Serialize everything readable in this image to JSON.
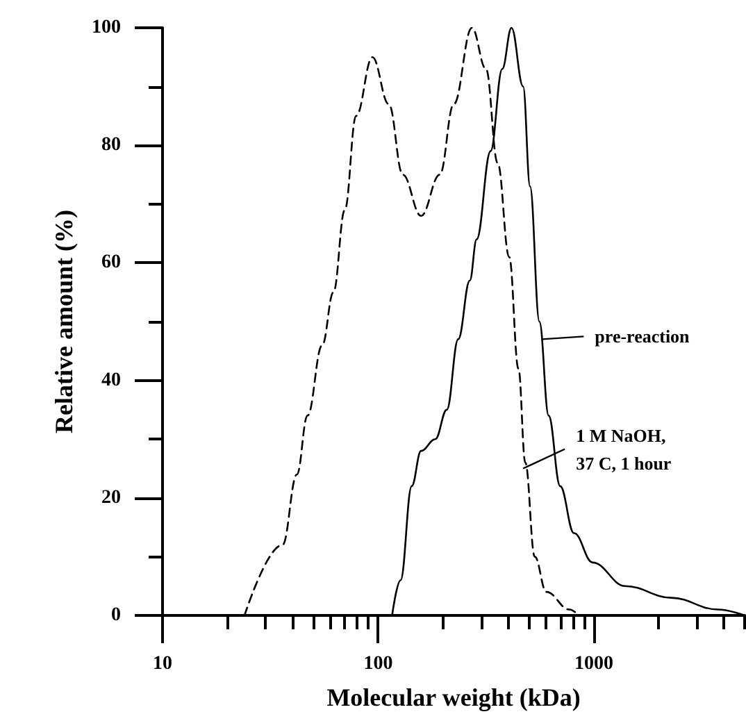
{
  "chart_data": {
    "type": "line",
    "xlabel": "Molecular weight (kDa)",
    "ylabel": "Relative amount (%)",
    "log": "x",
    "xlim": [
      10,
      5000
    ],
    "ylim": [
      0,
      100
    ],
    "xticks": [
      10,
      {
        "value": 20,
        "label": null
      },
      {
        "value": 30,
        "label": null
      },
      {
        "value": 40,
        "label": null
      },
      {
        "value": 50,
        "label": null
      },
      {
        "value": 60,
        "label": null
      },
      {
        "value": 70,
        "label": null
      },
      {
        "value": 80,
        "label": null
      },
      {
        "value": 90,
        "label": null
      },
      100,
      {
        "value": 200,
        "label": null
      },
      {
        "value": 300,
        "label": null
      },
      {
        "value": 400,
        "label": null
      },
      {
        "value": 500,
        "label": null
      },
      {
        "value": 600,
        "label": null
      },
      {
        "value": 700,
        "label": null
      },
      {
        "value": 800,
        "label": null
      },
      {
        "value": 900,
        "label": null
      },
      1000,
      {
        "value": 2000,
        "label": null
      },
      {
        "value": 3000,
        "label": null
      },
      {
        "value": 4000,
        "label": null
      },
      {
        "value": 5000,
        "label": null
      }
    ],
    "yticks": [
      0,
      {
        "value": 10,
        "label": null
      },
      20,
      {
        "value": 30,
        "label": null
      },
      40,
      {
        "value": 50,
        "label": null
      },
      60,
      {
        "value": 70,
        "label": null
      },
      80,
      {
        "value": 90,
        "label": null
      },
      100
    ],
    "grid": false,
    "marker": "none",
    "series": [
      {
        "color": "#000000",
        "line_style": "solid",
        "x": [
          116,
          127,
          143,
          158,
          184,
          208,
          235,
          266,
          286,
          332,
          376,
          415,
          470,
          506,
          559,
          617,
          698,
          809,
          988,
          1397,
          2290,
          3760,
          5000
        ],
        "values": [
          0,
          6,
          22,
          28,
          30,
          35,
          47,
          57,
          64,
          79,
          93,
          100,
          90,
          73,
          50,
          34,
          22,
          14,
          9,
          5,
          3,
          1,
          0
        ]
      },
      {
        "color": "#000000",
        "line_style": "dashed",
        "x": [
          24,
          36,
          42,
          47,
          55,
          62,
          70,
          79,
          94,
          112,
          130,
          158,
          193,
          224,
          272,
          316,
          358,
          405,
          447,
          481,
          532,
          602,
          771,
          851
        ],
        "values": [
          0,
          12,
          24,
          34,
          46,
          55,
          69,
          85,
          95,
          87,
          75,
          68,
          75,
          87,
          100,
          93,
          77,
          61,
          42,
          26,
          10,
          4,
          1,
          0
        ]
      }
    ],
    "annotations": [
      {
        "text": "pre-reaction",
        "x": 575,
        "y": 47
      },
      {
        "text": "1 M NaOH,\n37 C, 1 hour",
        "x": 470,
        "y": 25
      }
    ]
  }
}
